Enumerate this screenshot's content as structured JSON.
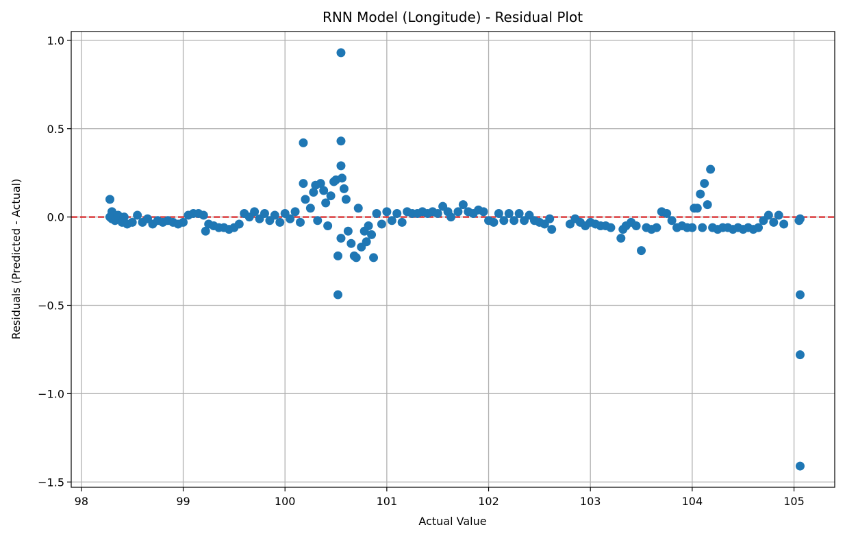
{
  "chart_data": {
    "type": "scatter",
    "title": "RNN Model (Longitude) - Residual Plot",
    "xlabel": "Actual Value",
    "ylabel": "Residuals (Predicted - Actual)",
    "xlim": [
      97.9,
      105.4
    ],
    "ylim": [
      -1.53,
      1.05
    ],
    "xticks": [
      98,
      99,
      100,
      101,
      102,
      103,
      104,
      105
    ],
    "xtick_labels": [
      "98",
      "99",
      "100",
      "101",
      "102",
      "103",
      "104",
      "105"
    ],
    "yticks": [
      1.0,
      0.5,
      0.0,
      -0.5,
      -1.0,
      -1.5
    ],
    "ytick_labels": [
      "1.0",
      "0.5",
      "0.0",
      "−0.5",
      "−1.0",
      "−1.5"
    ],
    "grid": true,
    "reference_line": {
      "y": 0.0,
      "style": "dashed"
    },
    "colors": {
      "points": "#1f77b4",
      "reference_line": "#d62728",
      "grid": "#b0b0b0"
    },
    "series": [
      {
        "points": [
          [
            98.28,
            0.1
          ],
          [
            98.28,
            0.0
          ],
          [
            98.3,
            0.03
          ],
          [
            98.3,
            -0.01
          ],
          [
            98.33,
            -0.02
          ],
          [
            98.36,
            0.01
          ],
          [
            98.4,
            -0.03
          ],
          [
            98.42,
            0.0
          ],
          [
            98.45,
            -0.04
          ],
          [
            98.5,
            -0.03
          ],
          [
            98.55,
            0.01
          ],
          [
            98.6,
            -0.03
          ],
          [
            98.65,
            -0.01
          ],
          [
            98.7,
            -0.04
          ],
          [
            98.75,
            -0.02
          ],
          [
            98.8,
            -0.03
          ],
          [
            98.85,
            -0.02
          ],
          [
            98.9,
            -0.03
          ],
          [
            98.95,
            -0.04
          ],
          [
            99.0,
            -0.03
          ],
          [
            99.05,
            0.01
          ],
          [
            99.1,
            0.02
          ],
          [
            99.15,
            0.02
          ],
          [
            99.2,
            0.01
          ],
          [
            99.22,
            -0.08
          ],
          [
            99.25,
            -0.04
          ],
          [
            99.3,
            -0.05
          ],
          [
            99.35,
            -0.06
          ],
          [
            99.4,
            -0.06
          ],
          [
            99.45,
            -0.07
          ],
          [
            99.5,
            -0.06
          ],
          [
            99.55,
            -0.04
          ],
          [
            99.6,
            0.02
          ],
          [
            99.65,
            0.0
          ],
          [
            99.7,
            0.03
          ],
          [
            99.75,
            -0.01
          ],
          [
            99.8,
            0.02
          ],
          [
            99.85,
            -0.02
          ],
          [
            99.9,
            0.01
          ],
          [
            99.95,
            -0.03
          ],
          [
            100.0,
            0.02
          ],
          [
            100.05,
            -0.01
          ],
          [
            100.1,
            0.03
          ],
          [
            100.15,
            -0.03
          ],
          [
            100.18,
            0.42
          ],
          [
            100.18,
            0.19
          ],
          [
            100.2,
            0.1
          ],
          [
            100.25,
            0.05
          ],
          [
            100.28,
            0.14
          ],
          [
            100.3,
            0.18
          ],
          [
            100.32,
            -0.02
          ],
          [
            100.35,
            0.19
          ],
          [
            100.38,
            0.15
          ],
          [
            100.4,
            0.08
          ],
          [
            100.42,
            -0.05
          ],
          [
            100.45,
            0.12
          ],
          [
            100.48,
            0.2
          ],
          [
            100.5,
            0.21
          ],
          [
            100.52,
            -0.22
          ],
          [
            100.52,
            -0.44
          ],
          [
            100.55,
            0.93
          ],
          [
            100.55,
            0.43
          ],
          [
            100.55,
            0.29
          ],
          [
            100.56,
            0.22
          ],
          [
            100.55,
            -0.12
          ],
          [
            100.58,
            0.16
          ],
          [
            100.6,
            0.1
          ],
          [
            100.62,
            -0.08
          ],
          [
            100.65,
            -0.15
          ],
          [
            100.68,
            -0.22
          ],
          [
            100.7,
            -0.23
          ],
          [
            100.72,
            0.05
          ],
          [
            100.75,
            -0.17
          ],
          [
            100.78,
            -0.08
          ],
          [
            100.8,
            -0.14
          ],
          [
            100.82,
            -0.05
          ],
          [
            100.85,
            -0.1
          ],
          [
            100.87,
            -0.23
          ],
          [
            100.9,
            0.02
          ],
          [
            100.95,
            -0.04
          ],
          [
            101.0,
            0.03
          ],
          [
            101.05,
            -0.02
          ],
          [
            101.1,
            0.02
          ],
          [
            101.15,
            -0.03
          ],
          [
            101.2,
            0.03
          ],
          [
            101.25,
            0.02
          ],
          [
            101.3,
            0.02
          ],
          [
            101.35,
            0.03
          ],
          [
            101.4,
            0.02
          ],
          [
            101.45,
            0.03
          ],
          [
            101.5,
            0.02
          ],
          [
            101.55,
            0.06
          ],
          [
            101.6,
            0.03
          ],
          [
            101.63,
            0.0
          ],
          [
            101.7,
            0.03
          ],
          [
            101.75,
            0.07
          ],
          [
            101.8,
            0.03
          ],
          [
            101.85,
            0.02
          ],
          [
            101.9,
            0.04
          ],
          [
            101.95,
            0.03
          ],
          [
            102.0,
            -0.02
          ],
          [
            102.05,
            -0.03
          ],
          [
            102.1,
            0.02
          ],
          [
            102.15,
            -0.02
          ],
          [
            102.2,
            0.02
          ],
          [
            102.25,
            -0.02
          ],
          [
            102.3,
            0.02
          ],
          [
            102.35,
            -0.02
          ],
          [
            102.4,
            0.01
          ],
          [
            102.45,
            -0.02
          ],
          [
            102.5,
            -0.03
          ],
          [
            102.55,
            -0.04
          ],
          [
            102.6,
            -0.01
          ],
          [
            102.62,
            -0.07
          ],
          [
            102.8,
            -0.04
          ],
          [
            102.85,
            -0.01
          ],
          [
            102.9,
            -0.03
          ],
          [
            102.95,
            -0.05
          ],
          [
            103.0,
            -0.03
          ],
          [
            103.05,
            -0.04
          ],
          [
            103.1,
            -0.05
          ],
          [
            103.15,
            -0.05
          ],
          [
            103.2,
            -0.06
          ],
          [
            103.3,
            -0.12
          ],
          [
            103.32,
            -0.07
          ],
          [
            103.35,
            -0.05
          ],
          [
            103.4,
            -0.03
          ],
          [
            103.45,
            -0.05
          ],
          [
            103.5,
            -0.19
          ],
          [
            103.55,
            -0.06
          ],
          [
            103.6,
            -0.07
          ],
          [
            103.65,
            -0.06
          ],
          [
            103.7,
            0.03
          ],
          [
            103.75,
            0.02
          ],
          [
            103.8,
            -0.02
          ],
          [
            103.85,
            -0.06
          ],
          [
            103.9,
            -0.05
          ],
          [
            103.95,
            -0.06
          ],
          [
            104.0,
            -0.06
          ],
          [
            104.02,
            0.05
          ],
          [
            104.05,
            0.05
          ],
          [
            104.08,
            0.13
          ],
          [
            104.1,
            -0.06
          ],
          [
            104.12,
            0.19
          ],
          [
            104.15,
            0.07
          ],
          [
            104.18,
            0.27
          ],
          [
            104.2,
            -0.06
          ],
          [
            104.25,
            -0.07
          ],
          [
            104.3,
            -0.06
          ],
          [
            104.35,
            -0.06
          ],
          [
            104.4,
            -0.07
          ],
          [
            104.45,
            -0.06
          ],
          [
            104.5,
            -0.07
          ],
          [
            104.55,
            -0.06
          ],
          [
            104.6,
            -0.07
          ],
          [
            104.65,
            -0.06
          ],
          [
            104.7,
            -0.02
          ],
          [
            104.75,
            0.01
          ],
          [
            104.8,
            -0.03
          ],
          [
            104.85,
            0.01
          ],
          [
            104.9,
            -0.04
          ],
          [
            105.05,
            -0.02
          ],
          [
            105.06,
            -0.01
          ],
          [
            105.06,
            -0.44
          ],
          [
            105.06,
            -0.78
          ],
          [
            105.06,
            -1.41
          ]
        ]
      }
    ]
  }
}
